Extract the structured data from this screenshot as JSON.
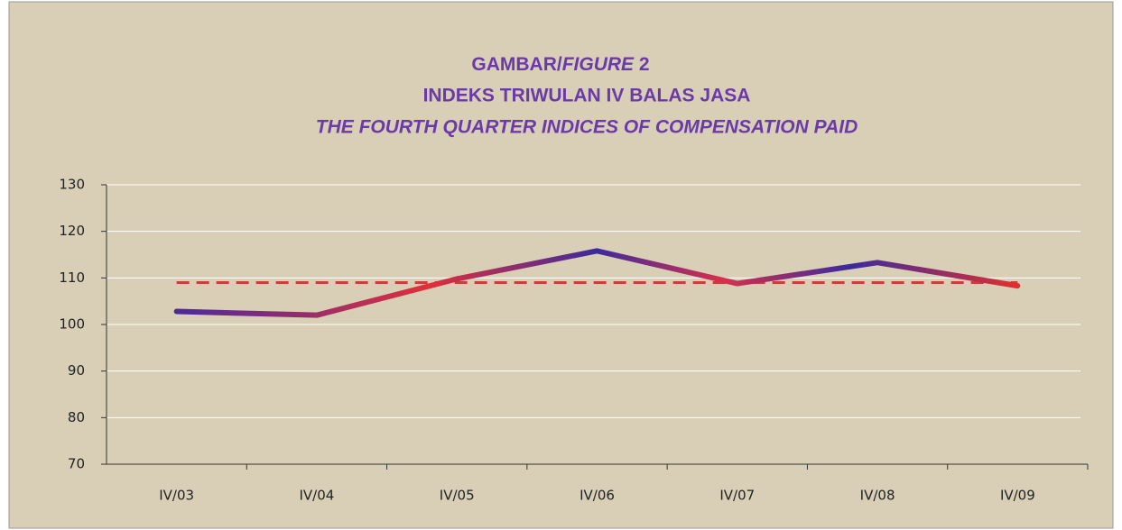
{
  "chart_data": {
    "type": "line",
    "title": {
      "prefix": "GAMBAR/",
      "italic": "FIGURE",
      "suffix": "2"
    },
    "subtitle": "INDEKS TRIWULAN IV  BALAS JASA",
    "subtitle_en": "THE FOURTH QUARTER INDICES OF COMPENSATION PAID",
    "categories": [
      "IV/03",
      "IV/04",
      "IV/05",
      "IV/06",
      "IV/07",
      "IV/08",
      "IV/09"
    ],
    "values": [
      102.8,
      102,
      109.8,
      115.8,
      108.8,
      113.3,
      108.3
    ],
    "color": "#5a2a9e",
    "reference_line": {
      "value": 109,
      "color": "#c9403a"
    },
    "ylim": [
      70,
      130
    ],
    "yticks": [
      70,
      80,
      90,
      100,
      110,
      120,
      130
    ],
    "grid": true
  }
}
